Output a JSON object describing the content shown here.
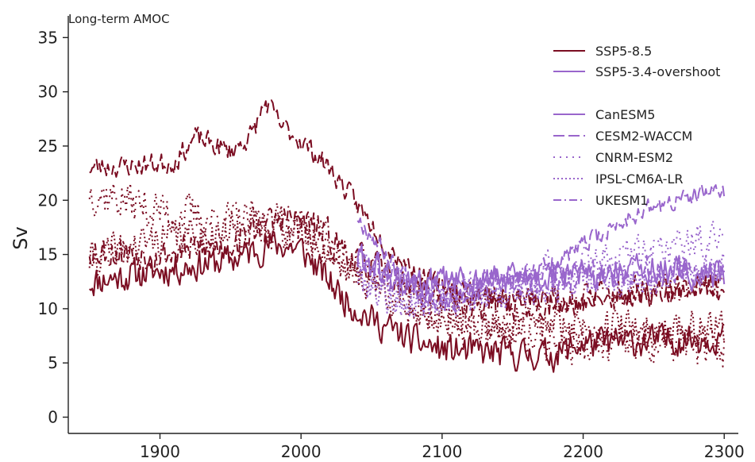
{
  "chart_data": {
    "type": "line",
    "title": "Long-term AMOC",
    "xlabel": "",
    "ylabel": "Sv",
    "xlim": [
      1835,
      2310
    ],
    "ylim": [
      -1.5,
      37
    ],
    "x_ticks": [
      1900,
      2000,
      2100,
      2200,
      2300
    ],
    "y_ticks": [
      0,
      5,
      10,
      15,
      20,
      25,
      30,
      35
    ],
    "grid": false,
    "legend_position": "top-right",
    "colors": {
      "ssp585": "#7b0d22",
      "overshoot": "#9966cc"
    },
    "legend": {
      "scenarios": [
        {
          "label": "SSP5-8.5",
          "color": "#7b0d22"
        },
        {
          "label": "SSP5-3.4-overshoot",
          "color": "#9966cc"
        }
      ],
      "models": [
        {
          "label": "CanESM5",
          "dash": "solid"
        },
        {
          "label": "CESM2-WACCM",
          "dash": "dashed"
        },
        {
          "label": "CNRM-ESM2",
          "dash": "dotted-sparse"
        },
        {
          "label": "IPSL-CM6A-LR",
          "dash": "dotted"
        },
        {
          "label": "UKESM1",
          "dash": "dashdot"
        }
      ]
    },
    "series": [
      {
        "model": "CanESM5",
        "scenario": "SSP5-8.5",
        "dash": "solid",
        "noise": 1.3,
        "seed": 11,
        "points": [
          [
            1850,
            12.5
          ],
          [
            1900,
            13.5
          ],
          [
            1950,
            14.5
          ],
          [
            1980,
            16.0
          ],
          [
            2000,
            15.5
          ],
          [
            2030,
            11.0
          ],
          [
            2050,
            9.0
          ],
          [
            2080,
            7.0
          ],
          [
            2100,
            6.2
          ],
          [
            2150,
            5.8
          ],
          [
            2180,
            5.8
          ],
          [
            2200,
            6.8
          ],
          [
            2250,
            7.0
          ],
          [
            2300,
            7.5
          ]
        ]
      },
      {
        "model": "CESM2-WACCM",
        "scenario": "SSP5-8.5",
        "dash": "dashed",
        "noise": 0.9,
        "seed": 23,
        "points": [
          [
            1850,
            23.0
          ],
          [
            1880,
            23.2
          ],
          [
            1910,
            23.5
          ],
          [
            1925,
            25.8
          ],
          [
            1950,
            24.5
          ],
          [
            1965,
            26.0
          ],
          [
            1975,
            29.0
          ],
          [
            1985,
            27.0
          ],
          [
            2000,
            25.5
          ],
          [
            2020,
            23.0
          ],
          [
            2040,
            19.5
          ],
          [
            2060,
            16.0
          ],
          [
            2080,
            13.5
          ],
          [
            2100,
            12.0
          ],
          [
            2150,
            11.0
          ],
          [
            2200,
            10.5
          ],
          [
            2250,
            11.5
          ],
          [
            2300,
            12.0
          ]
        ]
      },
      {
        "model": "CNRM-ESM2",
        "scenario": "SSP5-8.5",
        "dash": "dotted-sparse",
        "noise": 1.8,
        "seed": 37,
        "points": [
          [
            1850,
            21.0
          ],
          [
            1900,
            19.0
          ],
          [
            1950,
            18.0
          ],
          [
            2000,
            17.5
          ],
          [
            2040,
            14.0
          ],
          [
            2080,
            10.0
          ],
          [
            2120,
            8.5
          ],
          [
            2160,
            7.5
          ],
          [
            2200,
            6.5
          ],
          [
            2250,
            6.5
          ],
          [
            2300,
            6.5
          ]
        ]
      },
      {
        "model": "IPSL-CM6A-LR",
        "scenario": "SSP5-8.5",
        "dash": "dotted",
        "noise": 1.5,
        "seed": 41,
        "points": [
          [
            1850,
            14.5
          ],
          [
            1900,
            16.5
          ],
          [
            1950,
            17.0
          ],
          [
            1980,
            18.0
          ],
          [
            2000,
            17.0
          ],
          [
            2040,
            13.0
          ],
          [
            2080,
            10.0
          ],
          [
            2120,
            8.5
          ],
          [
            2160,
            8.5
          ],
          [
            2200,
            8.5
          ],
          [
            2250,
            8.0
          ],
          [
            2300,
            8.5
          ]
        ]
      },
      {
        "model": "UKESM1",
        "scenario": "SSP5-8.5",
        "dash": "dashdot",
        "noise": 1.4,
        "seed": 53,
        "points": [
          [
            1850,
            15.5
          ],
          [
            1900,
            15.0
          ],
          [
            1950,
            16.0
          ],
          [
            1990,
            18.5
          ],
          [
            2010,
            17.5
          ],
          [
            2040,
            14.5
          ],
          [
            2080,
            12.0
          ],
          [
            2120,
            10.5
          ],
          [
            2160,
            10.5
          ],
          [
            2200,
            11.0
          ],
          [
            2250,
            11.5
          ],
          [
            2300,
            12.0
          ]
        ]
      },
      {
        "model": "CanESM5",
        "scenario": "SSP5-3.4-overshoot",
        "dash": "solid",
        "noise": 1.3,
        "seed": 61,
        "points": [
          [
            2040,
            15.0
          ],
          [
            2060,
            13.0
          ],
          [
            2080,
            12.0
          ],
          [
            2100,
            12.5
          ],
          [
            2150,
            12.8
          ],
          [
            2200,
            13.0
          ],
          [
            2250,
            13.5
          ],
          [
            2300,
            13.0
          ]
        ]
      },
      {
        "model": "CESM2-WACCM",
        "scenario": "SSP5-3.4-overshoot",
        "dash": "dashed",
        "noise": 0.8,
        "seed": 67,
        "points": [
          [
            2040,
            18.5
          ],
          [
            2060,
            15.0
          ],
          [
            2080,
            12.0
          ],
          [
            2100,
            10.5
          ],
          [
            2130,
            11.5
          ],
          [
            2160,
            13.0
          ],
          [
            2190,
            15.0
          ],
          [
            2215,
            17.0
          ],
          [
            2240,
            19.0
          ],
          [
            2270,
            20.0
          ],
          [
            2300,
            21.0
          ]
        ]
      },
      {
        "model": "CNRM-ESM2",
        "scenario": "SSP5-3.4-overshoot",
        "dash": "dotted-sparse",
        "noise": 1.6,
        "seed": 71,
        "points": [
          [
            2040,
            14.0
          ],
          [
            2070,
            11.0
          ],
          [
            2100,
            11.5
          ],
          [
            2150,
            12.5
          ],
          [
            2200,
            14.0
          ],
          [
            2250,
            15.5
          ],
          [
            2300,
            16.5
          ]
        ]
      },
      {
        "model": "IPSL-CM6A-LR",
        "scenario": "SSP5-3.4-overshoot",
        "dash": "dotted",
        "noise": 1.4,
        "seed": 79,
        "points": [
          [
            2040,
            13.0
          ],
          [
            2070,
            10.5
          ],
          [
            2100,
            10.8
          ],
          [
            2150,
            11.5
          ],
          [
            2200,
            12.5
          ],
          [
            2250,
            13.0
          ],
          [
            2300,
            13.5
          ]
        ]
      },
      {
        "model": "UKESM1",
        "scenario": "SSP5-3.4-overshoot",
        "dash": "dashdot",
        "noise": 1.3,
        "seed": 83,
        "points": [
          [
            2040,
            14.5
          ],
          [
            2070,
            12.5
          ],
          [
            2100,
            12.0
          ],
          [
            2150,
            12.5
          ],
          [
            2200,
            13.0
          ],
          [
            2250,
            13.5
          ],
          [
            2300,
            13.8
          ]
        ]
      }
    ]
  }
}
